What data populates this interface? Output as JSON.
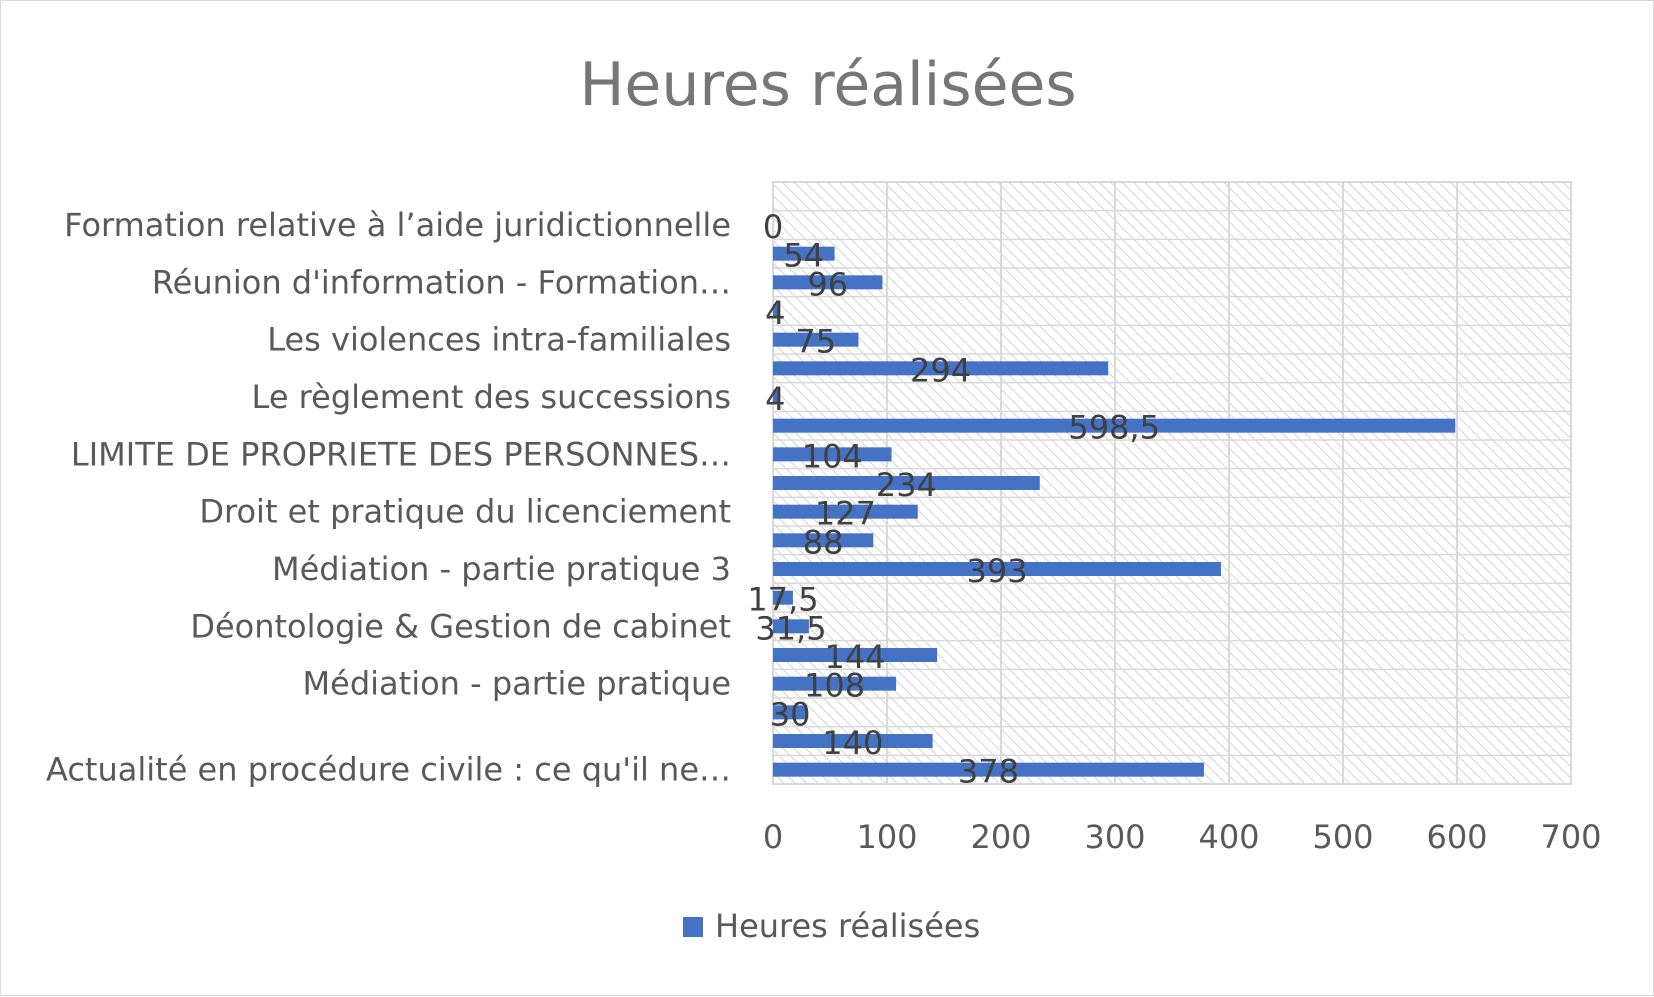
{
  "chart_data": {
    "type": "bar",
    "orientation": "horizontal",
    "title": "Heures réalisées",
    "categories": [
      "Actualité en procédure civile : ce qu'il ne…",
      "",
      "",
      "Médiation - partie pratique",
      "",
      "Déontologie & Gestion de cabinet",
      "",
      "Médiation - partie pratique 3",
      "",
      "Droit et pratique du licenciement",
      "",
      "LIMITE DE PROPRIETE DES PERSONNES…",
      "",
      "Le règlement des successions",
      "",
      "Les violences intra-familiales",
      "",
      "Réunion d'information - Formation…",
      "",
      "Formation relative à l’aide juridictionnelle",
      ""
    ],
    "series": [
      {
        "name": "Heures réalisées",
        "color": "#4472c4",
        "values": [
          378,
          140,
          30,
          108,
          144,
          31.5,
          17.5,
          393,
          88,
          127,
          234,
          104,
          598.5,
          4,
          294,
          75,
          4,
          96,
          54,
          0,
          0
        ],
        "data_labels": [
          "378",
          "140",
          "30",
          "108",
          "144",
          "31,5",
          "17,5",
          "393",
          "88",
          "127",
          "234",
          "104",
          "598,5",
          "4",
          "294",
          "75",
          "4",
          "96",
          "54",
          "0",
          ""
        ]
      }
    ],
    "xlim": [
      0,
      700
    ],
    "x_ticks": [
      "0",
      "100",
      "200",
      "300",
      "400",
      "500",
      "600",
      "700"
    ],
    "grid": true,
    "plot_background": "diagonal-hatch",
    "legend_position": "bottom"
  }
}
